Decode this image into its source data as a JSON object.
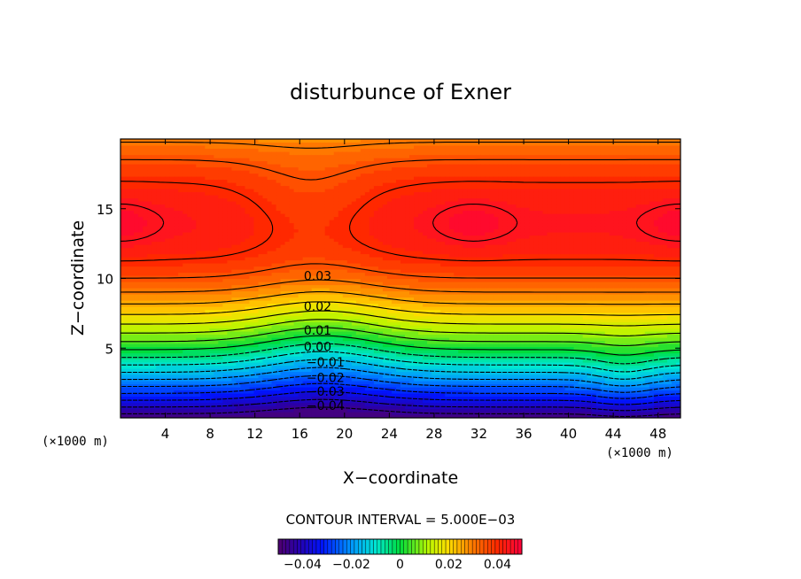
{
  "chart_data": {
    "type": "contour",
    "title": "disturbunce of Exner",
    "xlabel": "X−coordinate",
    "ylabel": "Z−coordinate",
    "x_unit_left": "(×1000 m)",
    "x_unit_right": "(×1000 m)",
    "xlim": [
      0,
      50
    ],
    "ylim": [
      0,
      20
    ],
    "x_ticks": [
      4,
      8,
      12,
      16,
      20,
      24,
      28,
      32,
      36,
      40,
      44,
      48
    ],
    "y_ticks": [
      5,
      10,
      15
    ],
    "contour_interval_text": "CONTOUR INTERVAL = 5.000E−03",
    "contour_interval": 0.005,
    "contour_labels": [
      {
        "text": "0.03",
        "x": 17.6,
        "z": 10.2
      },
      {
        "text": "0.02",
        "x": 17.6,
        "z": 8.0
      },
      {
        "text": "0.01",
        "x": 17.6,
        "z": 6.3
      },
      {
        "text": "0.00",
        "x": 17.6,
        "z": 5.1
      },
      {
        "text": "−0.01",
        "x": 18.3,
        "z": 4.0
      },
      {
        "text": "−0.02",
        "x": 18.3,
        "z": 2.9
      },
      {
        "text": "−0.03",
        "x": 18.3,
        "z": 1.9
      },
      {
        "text": "−0.04",
        "x": 18.3,
        "z": 0.9
      }
    ],
    "colorbar": {
      "ticks": [
        {
          "value": -0.04,
          "label": "−0.04"
        },
        {
          "value": -0.02,
          "label": "−0.02"
        },
        {
          "value": 0,
          "label": "0"
        },
        {
          "value": 0.02,
          "label": "0.02"
        },
        {
          "value": 0.04,
          "label": "0.04"
        }
      ],
      "range": [
        -0.05,
        0.05
      ],
      "colormap": "rainbow"
    },
    "field_range": [
      -0.048,
      0.048
    ],
    "levels": [
      -0.045,
      -0.04,
      -0.035,
      -0.03,
      -0.025,
      -0.02,
      -0.015,
      -0.01,
      -0.005,
      0.0,
      0.005,
      0.01,
      0.015,
      0.02,
      0.025,
      0.03,
      0.035,
      0.04,
      0.045
    ],
    "features": {
      "maxima": [
        {
          "x": 0,
          "z": 14
        },
        {
          "x": 31.5,
          "z": 14
        },
        {
          "x": 50,
          "z": 14
        }
      ],
      "minimum": {
        "x": 18,
        "z": 0
      }
    },
    "grid": false
  }
}
